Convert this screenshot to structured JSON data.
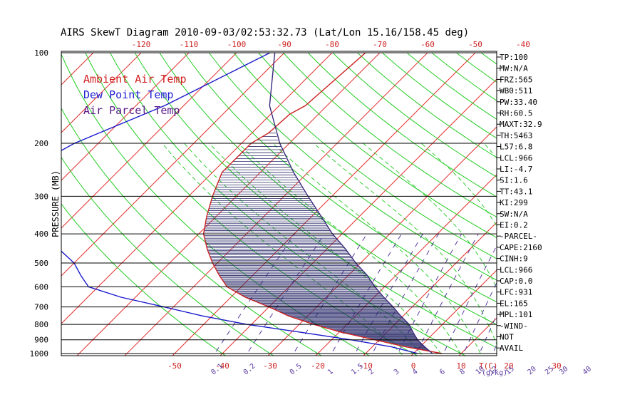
{
  "chart_data": {
    "type": "line",
    "title": "AIRS SkewT Diagram 2010-09-03/02:53:32.73 (Lat/Lon 15.16/158.45 deg)",
    "ylabel": "PRESSURE (MB)",
    "xlabel": "T(C)",
    "mixing_label": "(g/kg)",
    "pressure_levels": [
      100,
      200,
      300,
      400,
      500,
      600,
      700,
      800,
      900,
      1000
    ],
    "bottom_temp_ticks": [
      -50,
      -40,
      -30,
      -20,
      -10,
      0,
      10,
      20,
      30
    ],
    "top_temp_ticks": [
      -120,
      -110,
      -100,
      -90,
      -80,
      -70,
      -60,
      -50,
      -40
    ],
    "mixing_ratio_labels": [
      "0.1",
      "0.2",
      "0.5",
      "1",
      "1.5",
      "2",
      "3",
      "4",
      "6",
      "8",
      "10",
      "12",
      "15",
      "20",
      "25",
      "30",
      "40"
    ],
    "legend": [
      {
        "name": "Ambient Air Temp",
        "color": "#d22020"
      },
      {
        "name": "Dew Point Temp",
        "color": "#2020d2"
      },
      {
        "name": "Air Parcel Temp",
        "color": "#5a1a8a"
      }
    ],
    "series": [
      {
        "name": "Ambient Air Temp",
        "color": "#cc2222",
        "points": [
          [
            100,
            -73
          ],
          [
            150,
            -74.5
          ],
          [
            160,
            -76
          ],
          [
            185,
            -76.5
          ],
          [
            200,
            -78
          ],
          [
            250,
            -78
          ],
          [
            300,
            -75
          ],
          [
            350,
            -72
          ],
          [
            400,
            -69
          ],
          [
            450,
            -65
          ],
          [
            500,
            -61
          ],
          [
            550,
            -57
          ],
          [
            600,
            -53
          ],
          [
            650,
            -47
          ],
          [
            700,
            -40
          ],
          [
            750,
            -34
          ],
          [
            800,
            -27
          ],
          [
            850,
            -19.5
          ],
          [
            900,
            -11
          ],
          [
            950,
            -3
          ],
          [
            1000,
            6
          ]
        ]
      },
      {
        "name": "Dew Point Temp",
        "color": "#1a1acc",
        "points": [
          [
            100,
            -93
          ],
          [
            150,
            -104
          ],
          [
            200,
            -115
          ],
          [
            250,
            -120
          ],
          [
            300,
            -114
          ],
          [
            350,
            -109
          ],
          [
            400,
            -102
          ],
          [
            450,
            -96
          ],
          [
            500,
            -90
          ],
          [
            550,
            -86
          ],
          [
            600,
            -82
          ],
          [
            650,
            -73
          ],
          [
            700,
            -62
          ],
          [
            750,
            -52
          ],
          [
            800,
            -41
          ],
          [
            850,
            -28
          ],
          [
            900,
            -16
          ],
          [
            950,
            -6
          ],
          [
            1000,
            1
          ]
        ]
      },
      {
        "name": "Air Parcel Temp",
        "color": "#3a2a7a",
        "points": [
          [
            100,
            -92
          ],
          [
            150,
            -82
          ],
          [
            200,
            -72
          ],
          [
            250,
            -63
          ],
          [
            300,
            -55
          ],
          [
            350,
            -48
          ],
          [
            400,
            -42
          ],
          [
            450,
            -36
          ],
          [
            500,
            -31
          ],
          [
            550,
            -26
          ],
          [
            600,
            -22
          ],
          [
            650,
            -18
          ],
          [
            700,
            -14
          ],
          [
            750,
            -10.5
          ],
          [
            800,
            -7
          ],
          [
            850,
            -4.5
          ],
          [
            900,
            -2
          ],
          [
            950,
            1
          ],
          [
            1000,
            4
          ]
        ]
      }
    ],
    "stats": [
      "TP:100",
      "MW:N/A",
      "FRZ:565",
      "WB0:511",
      "PW:33.40",
      "RH:60.5",
      "MAXT:32.9",
      "TH:5463",
      "L57:6.8",
      "LCL:966",
      "LI:-4.7",
      "SI:1.6",
      "TT:43.1",
      "KI:299",
      "SW:N/A",
      "EI:0.2",
      "-PARCEL-",
      "CAPE:2160",
      "CINH:9",
      "LCL:966",
      "CAP:0.0",
      "LFC:931",
      "EL:165",
      "MPL:101",
      "-WIND-",
      "NOT",
      "AVAIL"
    ],
    "colors": {
      "isotherm": "#e23030",
      "dry_adiabat": "#22cc22",
      "moist_adiabat": "#33cc33",
      "mixing_ratio": "#5a3aa0",
      "axis_red": "#cc2222",
      "shade": "#2a2a6a",
      "frame": "#000000"
    }
  }
}
